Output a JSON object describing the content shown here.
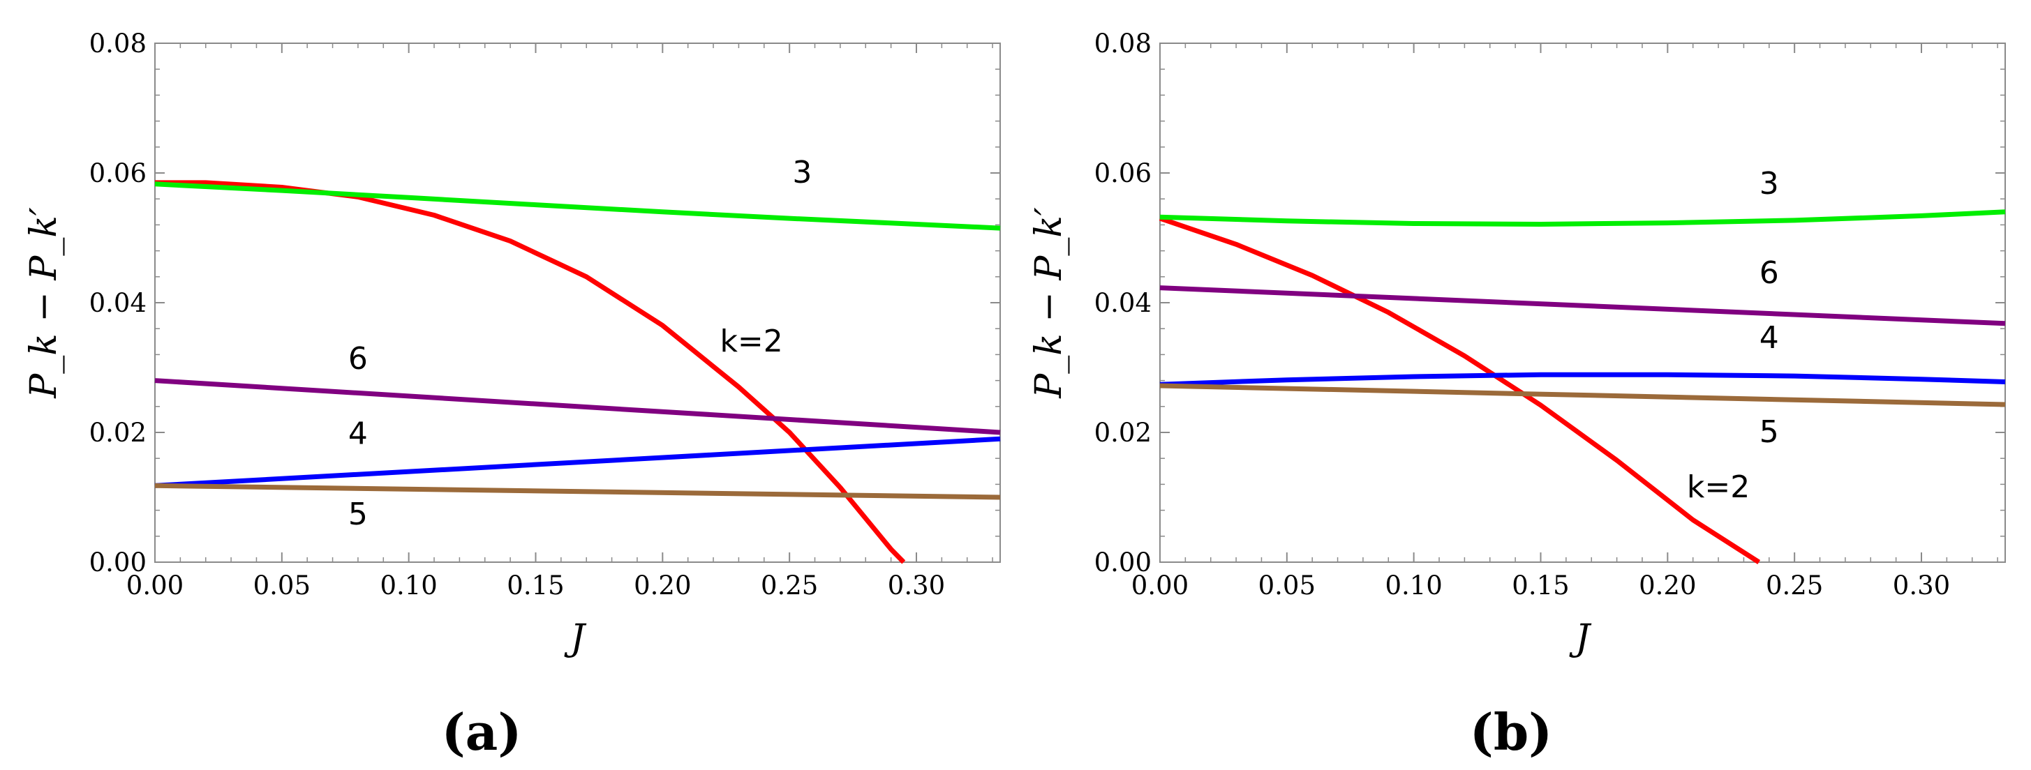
{
  "chart_data": [
    {
      "type": "line",
      "panel_label": "(a)",
      "xlabel": "J",
      "ylabel": "P_k − P_k′",
      "xlim": [
        0,
        0.333
      ],
      "ylim": [
        0,
        0.08
      ],
      "x_ticks": [
        "0.00",
        "0.05",
        "0.10",
        "0.15",
        "0.20",
        "0.25",
        "0.30"
      ],
      "y_ticks": [
        "0.00",
        "0.02",
        "0.04",
        "0.06",
        "0.08"
      ],
      "series": [
        {
          "name": "k=2",
          "label": "k=2",
          "color": "#ff0000",
          "x": [
            0,
            0.02,
            0.05,
            0.08,
            0.11,
            0.14,
            0.17,
            0.2,
            0.23,
            0.25,
            0.27,
            0.29,
            0.295
          ],
          "y": [
            0.0585,
            0.0585,
            0.0578,
            0.0563,
            0.0535,
            0.0495,
            0.044,
            0.0365,
            0.027,
            0.02,
            0.0115,
            0.002,
            0.0
          ]
        },
        {
          "name": "3",
          "label": "3",
          "color": "#00ee00",
          "x": [
            0,
            0.05,
            0.1,
            0.15,
            0.2,
            0.25,
            0.3,
            0.333
          ],
          "y": [
            0.0583,
            0.0573,
            0.0562,
            0.0551,
            0.054,
            0.053,
            0.0521,
            0.0515
          ]
        },
        {
          "name": "6",
          "label": "6",
          "color": "#800080",
          "x": [
            0,
            0.333
          ],
          "y": [
            0.028,
            0.02
          ]
        },
        {
          "name": "4",
          "label": "4",
          "color": "#0000ff",
          "x": [
            0,
            0.333
          ],
          "y": [
            0.0118,
            0.019
          ]
        },
        {
          "name": "5",
          "label": "5",
          "color": "#9b6a3a",
          "x": [
            0,
            0.333
          ],
          "y": [
            0.0118,
            0.01
          ]
        }
      ],
      "annotations": [
        {
          "text": "3",
          "x": 0.255,
          "y": 0.0585
        },
        {
          "text": "k=2",
          "x": 0.235,
          "y": 0.0325
        },
        {
          "text": "6",
          "x": 0.08,
          "y": 0.0298
        },
        {
          "text": "4",
          "x": 0.08,
          "y": 0.0182
        },
        {
          "text": "5",
          "x": 0.08,
          "y": 0.0058
        }
      ]
    },
    {
      "type": "line",
      "panel_label": "(b)",
      "xlabel": "J",
      "ylabel": "P_k − P_k′",
      "xlim": [
        0,
        0.333
      ],
      "ylim": [
        0,
        0.08
      ],
      "x_ticks": [
        "0.00",
        "0.05",
        "0.10",
        "0.15",
        "0.20",
        "0.25",
        "0.30"
      ],
      "y_ticks": [
        "0.00",
        "0.02",
        "0.04",
        "0.06",
        "0.08"
      ],
      "series": [
        {
          "name": "k=2",
          "label": "k=2",
          "color": "#ff0000",
          "x": [
            0,
            0.03,
            0.06,
            0.09,
            0.12,
            0.15,
            0.18,
            0.21,
            0.236
          ],
          "y": [
            0.053,
            0.049,
            0.0442,
            0.0385,
            0.0318,
            0.0242,
            0.0157,
            0.0065,
            0.0
          ]
        },
        {
          "name": "3",
          "label": "3",
          "color": "#00ee00",
          "x": [
            0,
            0.05,
            0.1,
            0.15,
            0.2,
            0.25,
            0.3,
            0.333
          ],
          "y": [
            0.0532,
            0.0526,
            0.0522,
            0.0521,
            0.0523,
            0.0527,
            0.0534,
            0.054
          ]
        },
        {
          "name": "6",
          "label": "6",
          "color": "#800080",
          "x": [
            0,
            0.333
          ],
          "y": [
            0.0423,
            0.0368
          ]
        },
        {
          "name": "4",
          "label": "4",
          "color": "#0000ff",
          "x": [
            0,
            0.05,
            0.1,
            0.15,
            0.2,
            0.25,
            0.3,
            0.333
          ],
          "y": [
            0.0274,
            0.0281,
            0.0286,
            0.0289,
            0.0289,
            0.0287,
            0.0282,
            0.0278
          ]
        },
        {
          "name": "5",
          "label": "5",
          "color": "#9b6a3a",
          "x": [
            0,
            0.333
          ],
          "y": [
            0.0272,
            0.0243
          ]
        }
      ],
      "annotations": [
        {
          "text": "3",
          "x": 0.24,
          "y": 0.0568
        },
        {
          "text": "6",
          "x": 0.24,
          "y": 0.043
        },
        {
          "text": "4",
          "x": 0.24,
          "y": 0.033
        },
        {
          "text": "5",
          "x": 0.24,
          "y": 0.0185
        },
        {
          "text": "k=2",
          "x": 0.22,
          "y": 0.01
        }
      ]
    }
  ]
}
